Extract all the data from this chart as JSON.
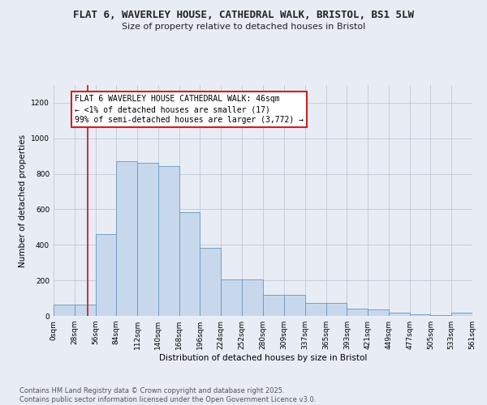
{
  "title_line1": "FLAT 6, WAVERLEY HOUSE, CATHEDRAL WALK, BRISTOL, BS1 5LW",
  "title_line2": "Size of property relative to detached houses in Bristol",
  "xlabel": "Distribution of detached houses by size in Bristol",
  "ylabel": "Number of detached properties",
  "bin_edges": [
    0,
    28,
    56,
    84,
    112,
    140,
    168,
    196,
    224,
    252,
    280,
    309,
    337,
    365,
    393,
    421,
    449,
    477,
    505,
    533,
    561
  ],
  "bar_heights": [
    65,
    65,
    460,
    870,
    860,
    845,
    585,
    385,
    205,
    205,
    120,
    120,
    75,
    75,
    40,
    35,
    20,
    10,
    5,
    20
  ],
  "bar_color": "#c8d8ec",
  "bar_edge_color": "#6699bb",
  "vline_x": 46,
  "vline_color": "#cc2222",
  "annotation_text": "FLAT 6 WAVERLEY HOUSE CATHEDRAL WALK: 46sqm\n← <1% of detached houses are smaller (17)\n99% of semi-detached houses are larger (3,772) →",
  "annotation_box_facecolor": "#ffffff",
  "annotation_box_edgecolor": "#cc2222",
  "ylim": [
    0,
    1300
  ],
  "yticks": [
    0,
    200,
    400,
    600,
    800,
    1000,
    1200
  ],
  "xtick_labels": [
    "0sqm",
    "28sqm",
    "56sqm",
    "84sqm",
    "112sqm",
    "140sqm",
    "168sqm",
    "196sqm",
    "224sqm",
    "252sqm",
    "280sqm",
    "309sqm",
    "337sqm",
    "365sqm",
    "393sqm",
    "421sqm",
    "449sqm",
    "477sqm",
    "505sqm",
    "533sqm",
    "561sqm"
  ],
  "footnote": "Contains HM Land Registry data © Crown copyright and database right 2025.\nContains public sector information licensed under the Open Government Licence v3.0.",
  "bg_color": "#e8ecf4",
  "title_fontsize": 9,
  "subtitle_fontsize": 8,
  "tick_fontsize": 6.5,
  "label_fontsize": 7.5,
  "annot_fontsize": 7,
  "footnote_fontsize": 6
}
